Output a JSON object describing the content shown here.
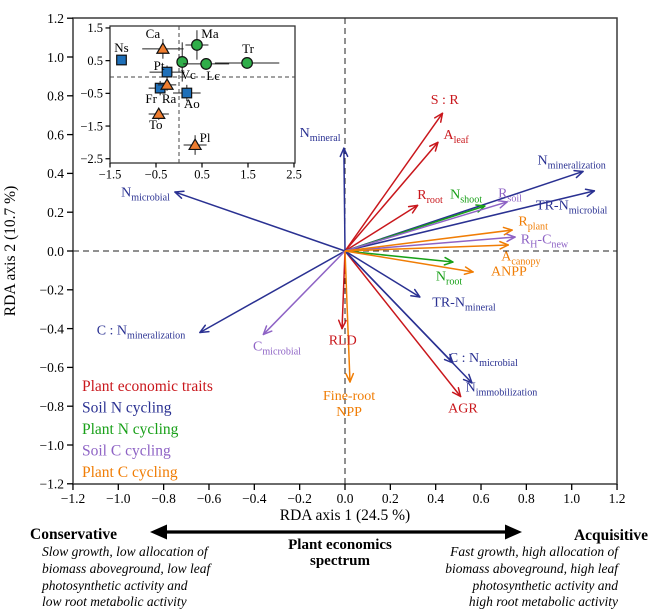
{
  "annotations": {
    "conservative": "Conservative",
    "acquisitive": "Acquisitive",
    "spectrum_title": "Plant economics\nspectrum",
    "conservative_desc": "Slow growth, low allocation of\nbiomass aboveground, low leaf\nphotosynthetic activity and\nlow root metabolic activity",
    "acquisitive_desc": "Fast growth, high allocation of\nbiomass aboveground, high leaf\nphotosynthetic activity and\nhigh root metabolic activity"
  },
  "chart_data": [
    {
      "id": "rda-biplot",
      "type": "scatter",
      "subtype": "rda-arrow-biplot",
      "xlabel": "RDA axis 1 (24.5 %)",
      "ylabel": "RDA axis 2 (10.7 %)",
      "xlim": [
        -1.2,
        1.2
      ],
      "ylim": [
        -1.2,
        1.2
      ],
      "x_ticks": [
        -1.2,
        -1.0,
        -0.8,
        -0.6,
        -0.4,
        -0.2,
        0.0,
        0.2,
        0.4,
        0.6,
        0.8,
        1.0,
        1.2
      ],
      "y_ticks": [
        1.2,
        1.0,
        0.8,
        0.6,
        0.4,
        0.2,
        0.0,
        -0.2,
        -0.4,
        -0.6,
        -0.8,
        -1.0,
        -1.2
      ],
      "grid": false,
      "zero_lines": "dashed",
      "legend_position": "lower-left",
      "groups": [
        {
          "name": "Plant economic traits",
          "color": "#c9171c",
          "arrows": [
            {
              "label": "S : R",
              "x": 0.43,
              "y": 0.71,
              "lx": 0.44,
              "ly": 0.78
            },
            {
              "label": "A_{leaf}",
              "x": 0.41,
              "y": 0.56,
              "lx": 0.49,
              "ly": 0.6
            },
            {
              "label": "R_{root}",
              "x": 0.32,
              "y": 0.235,
              "lx": 0.375,
              "ly": 0.29
            },
            {
              "label": "RLD",
              "x": -0.013,
              "y": -0.4,
              "lx": -0.01,
              "ly": -0.46
            },
            {
              "label": "AGR",
              "x": 0.51,
              "y": -0.75,
              "lx": 0.52,
              "ly": -0.81
            }
          ]
        },
        {
          "name": "Soil N cycling",
          "color": "#2a3192",
          "arrows": [
            {
              "label": "N_{mineral}",
              "x": -0.005,
              "y": 0.53,
              "lx": -0.11,
              "ly": 0.61
            },
            {
              "label": "N_{mineralization}",
              "x": 1.05,
              "y": 0.41,
              "lx": 1.0,
              "ly": 0.47
            },
            {
              "label": "TR-N_{microbial}",
              "x": 1.1,
              "y": 0.31,
              "lx": 1.0,
              "ly": 0.237
            },
            {
              "label": "TR-N_{mineral}",
              "x": 0.33,
              "y": -0.237,
              "lx": 0.525,
              "ly": -0.263
            },
            {
              "label": "C : N_{microbial}",
              "x": 0.476,
              "y": -0.577,
              "lx": 0.61,
              "ly": -0.55
            },
            {
              "label": "N_{immobilization}",
              "x": 0.56,
              "y": -0.68,
              "lx": 0.69,
              "ly": -0.7
            },
            {
              "label": "C : N_{mineralization}",
              "x": -0.64,
              "y": -0.42,
              "lx": -0.9,
              "ly": -0.407
            },
            {
              "label": "N_{microbial}",
              "x": -0.75,
              "y": 0.304,
              "lx": -0.88,
              "ly": 0.304
            }
          ]
        },
        {
          "name": "Plant N cycling",
          "color": "#18a018",
          "arrows": [
            {
              "label": "N_{shoot}",
              "x": 0.617,
              "y": 0.232,
              "lx": 0.534,
              "ly": 0.294
            },
            {
              "label": "N_{root}",
              "x": 0.476,
              "y": -0.057,
              "lx": 0.459,
              "ly": -0.129
            }
          ]
        },
        {
          "name": "Soil C cycling",
          "color": "#8e63c5",
          "arrows": [
            {
              "label": "R_{soil}",
              "x": 0.715,
              "y": 0.253,
              "lx": 0.728,
              "ly": 0.299
            },
            {
              "label": "R_{H}-C_{new}",
              "x": 0.75,
              "y": 0.072,
              "lx": 0.88,
              "ly": 0.062
            },
            {
              "label": "C_{microbial}",
              "x": -0.36,
              "y": -0.43,
              "lx": -0.3,
              "ly": -0.49
            }
          ]
        },
        {
          "name": "Plant C cycling",
          "color": "#f07d05",
          "arrows": [
            {
              "label": "R_{plant}",
              "x": 0.737,
              "y": 0.108,
              "lx": 0.83,
              "ly": 0.155
            },
            {
              "label": "A_{canopy}",
              "x": 0.72,
              "y": 0.031,
              "lx": 0.776,
              "ly": -0.026
            },
            {
              "label": "ANPP",
              "x": 0.565,
              "y": -0.108,
              "lx": 0.723,
              "ly": -0.103
            },
            {
              "label": "Fine-root\nNPP",
              "x": 0.022,
              "y": -0.675,
              "lx": 0.018,
              "ly": -0.745
            }
          ]
        }
      ]
    },
    {
      "id": "inset-site-scores",
      "type": "scatter",
      "xlim": [
        -1.5,
        2.5
      ],
      "ylim": [
        -2.5,
        1.5
      ],
      "x_ticks": [
        -1.5,
        -0.5,
        0.5,
        1.5,
        2.5
      ],
      "y_ticks": [
        1.5,
        0.5,
        -0.5,
        -1.5,
        -2.5
      ],
      "zero_lines": "dashed",
      "series": [
        {
          "shape": "circle",
          "color": "#2fae49",
          "points": [
            {
              "label": "Ma",
              "x": 0.39,
              "y": 0.98,
              "ex": 0.25,
              "ey": 0.45,
              "ldx": 13,
              "ldy": -11
            },
            {
              "label": "Tr",
              "x": 1.48,
              "y": 0.43,
              "ex": 0.7,
              "ey": 0.15,
              "ldx": 1,
              "ldy": -14
            },
            {
              "label": "Vc",
              "x": 0.07,
              "y": 0.46,
              "ex": 0.1,
              "ey": 0.6,
              "ldx": 6,
              "ldy": 13
            },
            {
              "label": "Lc",
              "x": 0.59,
              "y": 0.4,
              "ex": 0.5,
              "ey": 0.18,
              "ldx": 7,
              "ldy": 12
            }
          ]
        },
        {
          "shape": "square",
          "color": "#1e6fb8",
          "points": [
            {
              "label": "Ns",
              "x": -1.25,
              "y": 0.52,
              "ex": 0,
              "ey": 0,
              "ldx": 0,
              "ldy": -12
            },
            {
              "label": "Pt",
              "x": -0.26,
              "y": 0.15,
              "ex": 0.38,
              "ey": 0.2,
              "ldx": -8,
              "ldy": -6
            },
            {
              "label": "Fr",
              "x": -0.41,
              "y": -0.34,
              "ex": 0.25,
              "ey": 0.22,
              "ldx": -9,
              "ldy": 11
            },
            {
              "label": "Ao",
              "x": 0.17,
              "y": -0.49,
              "ex": 0.3,
              "ey": 0.25,
              "ldx": 5,
              "ldy": 11
            }
          ]
        },
        {
          "shape": "triangle",
          "color": "#ef7d2f",
          "points": [
            {
              "label": "Ca",
              "x": -0.35,
              "y": 0.86,
              "ex": 0.45,
              "ey": 0.3,
              "ldx": -10,
              "ldy": -15
            },
            {
              "label": "Ra",
              "x": -0.26,
              "y": -0.24,
              "ex": 0.2,
              "ey": 0.18,
              "ldx": 2,
              "ldy": 14
            },
            {
              "label": "To",
              "x": -0.44,
              "y": -1.13,
              "ex": 0.22,
              "ey": 0.18,
              "ldx": -3,
              "ldy": 11
            },
            {
              "label": "Pl",
              "x": 0.35,
              "y": -2.08,
              "ex": 0.25,
              "ey": 0.3,
              "ldx": 10,
              "ldy": -7
            }
          ]
        }
      ]
    }
  ]
}
